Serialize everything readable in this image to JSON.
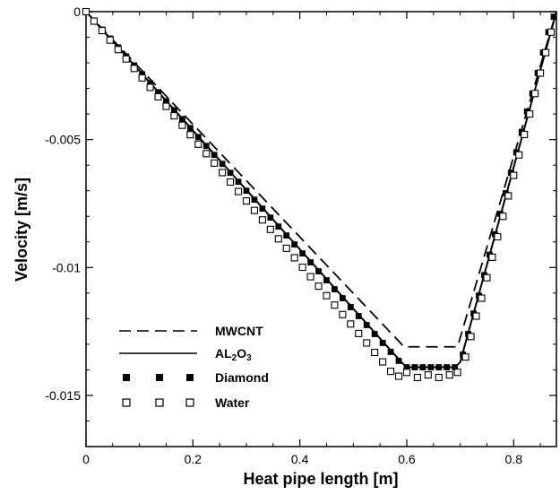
{
  "chart_data": {
    "type": "line",
    "xlabel": "Heat pipe length [m]",
    "ylabel": "Velocity [m/s]",
    "xlim": [
      0,
      0.88
    ],
    "ylim": [
      -0.017,
      0
    ],
    "xticks": [
      0,
      0.2,
      0.4,
      0.6,
      0.8
    ],
    "xtick_labels": [
      "0",
      "0.2",
      "0.4",
      "0.6",
      "0.8"
    ],
    "yticks": [
      0,
      -0.005,
      -0.01,
      -0.015
    ],
    "ytick_labels": [
      "0",
      "-0.005",
      "-0.01",
      "-0.015"
    ],
    "grid": false,
    "legend_position": "bottom-left",
    "series": [
      {
        "name": "MWCNT",
        "style": "dashed",
        "color": "#000000",
        "x": [
          0,
          0.595,
          0.695,
          0.88
        ],
        "y": [
          0,
          -0.0131,
          -0.0131,
          0
        ]
      },
      {
        "name": "AL2O3",
        "label_main": "AL",
        "label_sub1": "2",
        "label_mid": "O",
        "label_sub2": "3",
        "style": "solid",
        "color": "#000000",
        "x": [
          0,
          0.59,
          0.6,
          0.69,
          0.7,
          0.88
        ],
        "y": [
          0,
          -0.0137,
          -0.0139,
          -0.0139,
          -0.0137,
          0
        ]
      },
      {
        "name": "Diamond",
        "style": "filled-square",
        "color": "#000000",
        "x": [
          0,
          0.015,
          0.03,
          0.045,
          0.06,
          0.075,
          0.09,
          0.105,
          0.12,
          0.135,
          0.15,
          0.165,
          0.18,
          0.195,
          0.21,
          0.225,
          0.24,
          0.255,
          0.27,
          0.285,
          0.3,
          0.315,
          0.33,
          0.345,
          0.36,
          0.375,
          0.39,
          0.405,
          0.42,
          0.435,
          0.45,
          0.465,
          0.48,
          0.495,
          0.51,
          0.525,
          0.54,
          0.555,
          0.57,
          0.585,
          0.6,
          0.615,
          0.63,
          0.645,
          0.66,
          0.675,
          0.69,
          0.705,
          0.715,
          0.725,
          0.735,
          0.745,
          0.755,
          0.765,
          0.775,
          0.785,
          0.795,
          0.805,
          0.815,
          0.825,
          0.835,
          0.845,
          0.855,
          0.865,
          0.875
        ],
        "y": [
          0,
          -0.00035,
          -0.0007,
          -0.00105,
          -0.0014,
          -0.00175,
          -0.0021,
          -0.00245,
          -0.0028,
          -0.00315,
          -0.0035,
          -0.00385,
          -0.0042,
          -0.00455,
          -0.0049,
          -0.00525,
          -0.0056,
          -0.00595,
          -0.0063,
          -0.00665,
          -0.007,
          -0.00735,
          -0.0077,
          -0.00805,
          -0.0084,
          -0.00875,
          -0.0091,
          -0.00945,
          -0.0098,
          -0.01015,
          -0.0105,
          -0.01085,
          -0.0112,
          -0.01155,
          -0.0119,
          -0.01225,
          -0.0126,
          -0.01295,
          -0.0133,
          -0.01365,
          -0.0139,
          -0.0139,
          -0.0139,
          -0.0139,
          -0.0139,
          -0.0139,
          -0.0139,
          -0.0134,
          -0.0126,
          -0.0118,
          -0.0111,
          -0.0103,
          -0.0095,
          -0.0087,
          -0.0079,
          -0.0071,
          -0.0063,
          -0.0055,
          -0.0047,
          -0.0039,
          -0.0032,
          -0.0024,
          -0.0016,
          -0.0008,
          -0.0002
        ]
      },
      {
        "name": "Water",
        "style": "open-square",
        "color": "#000000",
        "x": [
          0,
          0.015,
          0.03,
          0.045,
          0.06,
          0.075,
          0.09,
          0.105,
          0.12,
          0.135,
          0.15,
          0.165,
          0.18,
          0.195,
          0.21,
          0.225,
          0.24,
          0.255,
          0.27,
          0.285,
          0.3,
          0.315,
          0.33,
          0.345,
          0.36,
          0.375,
          0.39,
          0.405,
          0.42,
          0.435,
          0.45,
          0.465,
          0.48,
          0.495,
          0.51,
          0.525,
          0.54,
          0.555,
          0.57,
          0.585,
          0.6,
          0.62,
          0.64,
          0.66,
          0.68,
          0.695,
          0.71,
          0.72,
          0.73,
          0.74,
          0.75,
          0.76,
          0.77,
          0.78,
          0.79,
          0.8,
          0.81,
          0.82,
          0.83,
          0.84,
          0.85,
          0.86,
          0.87
        ],
        "y": [
          0,
          -0.00037,
          -0.00074,
          -0.00111,
          -0.00148,
          -0.00185,
          -0.00222,
          -0.00259,
          -0.00296,
          -0.00333,
          -0.0037,
          -0.00407,
          -0.00444,
          -0.00481,
          -0.00518,
          -0.00555,
          -0.00592,
          -0.00629,
          -0.00666,
          -0.00703,
          -0.0074,
          -0.00777,
          -0.00814,
          -0.00851,
          -0.00888,
          -0.00925,
          -0.00962,
          -0.00999,
          -0.01036,
          -0.01073,
          -0.0111,
          -0.01147,
          -0.01184,
          -0.01221,
          -0.01258,
          -0.01295,
          -0.01332,
          -0.01369,
          -0.01406,
          -0.01425,
          -0.0141,
          -0.0143,
          -0.0142,
          -0.0143,
          -0.0142,
          -0.0141,
          -0.0135,
          -0.0127,
          -0.0119,
          -0.0112,
          -0.0104,
          -0.0096,
          -0.0088,
          -0.008,
          -0.0072,
          -0.0064,
          -0.0056,
          -0.0048,
          -0.004,
          -0.0032,
          -0.0024,
          -0.0016,
          -0.0008
        ]
      }
    ]
  }
}
